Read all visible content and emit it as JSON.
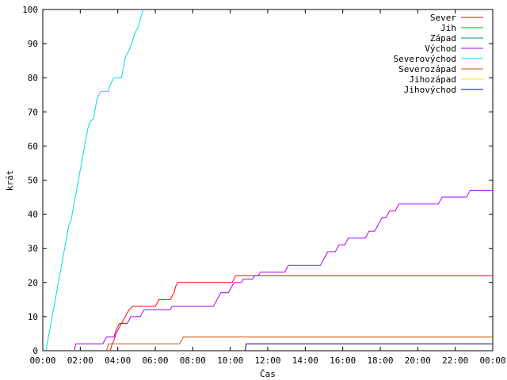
{
  "chart_data": {
    "type": "line",
    "ylabel": "krát",
    "xlabel": "Čas",
    "xlim": [
      0,
      24
    ],
    "ylim": [
      0,
      100
    ],
    "x_tick_labels": [
      "00:00",
      "02:00",
      "04:00",
      "06:00",
      "08:00",
      "10:00",
      "12:00",
      "14:00",
      "16:00",
      "18:00",
      "20:00",
      "22:00",
      "00:00"
    ],
    "y_ticks": [
      0,
      10,
      20,
      30,
      40,
      50,
      60,
      70,
      80,
      90,
      100
    ],
    "legend_position": "top-right",
    "grid": false,
    "series": [
      {
        "name": "Sever",
        "color": "#ff0000",
        "points": [
          [
            3.6,
            0
          ],
          [
            3.7,
            2
          ],
          [
            3.8,
            3
          ],
          [
            3.9,
            5
          ],
          [
            4.0,
            6
          ],
          [
            4.1,
            7
          ],
          [
            4.2,
            8
          ],
          [
            4.3,
            9
          ],
          [
            4.4,
            10
          ],
          [
            4.5,
            11
          ],
          [
            4.6,
            12
          ],
          [
            4.8,
            13
          ],
          [
            6.0,
            13
          ],
          [
            6.1,
            14
          ],
          [
            6.2,
            15
          ],
          [
            6.8,
            15
          ],
          [
            6.9,
            16
          ],
          [
            7.0,
            17
          ],
          [
            7.05,
            18
          ],
          [
            7.1,
            19
          ],
          [
            7.2,
            20
          ],
          [
            10.1,
            20
          ],
          [
            10.2,
            21
          ],
          [
            10.3,
            22
          ],
          [
            24,
            22
          ]
        ]
      },
      {
        "name": "Jih",
        "color": "#00aa00",
        "points": []
      },
      {
        "name": "Západ",
        "color": "#0088aa",
        "points": []
      },
      {
        "name": "Východ",
        "color": "#aa00ee",
        "points": [
          [
            1.7,
            0
          ],
          [
            1.75,
            2
          ],
          [
            3.2,
            2
          ],
          [
            3.3,
            3
          ],
          [
            3.4,
            4
          ],
          [
            3.8,
            4
          ],
          [
            3.9,
            6
          ],
          [
            4.0,
            7
          ],
          [
            4.1,
            8
          ],
          [
            4.5,
            8
          ],
          [
            4.6,
            9
          ],
          [
            4.7,
            10
          ],
          [
            5.2,
            10
          ],
          [
            5.3,
            11
          ],
          [
            5.4,
            12
          ],
          [
            6.8,
            12
          ],
          [
            6.9,
            13
          ],
          [
            9.1,
            13
          ],
          [
            9.2,
            14
          ],
          [
            9.3,
            15
          ],
          [
            9.4,
            16
          ],
          [
            9.5,
            17
          ],
          [
            9.9,
            17
          ],
          [
            10.0,
            18
          ],
          [
            10.1,
            19
          ],
          [
            10.2,
            20
          ],
          [
            10.6,
            20
          ],
          [
            10.7,
            21
          ],
          [
            11.2,
            21
          ],
          [
            11.3,
            22
          ],
          [
            11.5,
            22
          ],
          [
            11.6,
            23
          ],
          [
            12.9,
            23
          ],
          [
            13.0,
            24
          ],
          [
            13.1,
            25
          ],
          [
            14.8,
            25
          ],
          [
            14.9,
            26
          ],
          [
            15.0,
            27
          ],
          [
            15.1,
            28
          ],
          [
            15.2,
            29
          ],
          [
            15.6,
            29
          ],
          [
            15.7,
            30
          ],
          [
            15.8,
            31
          ],
          [
            16.1,
            31
          ],
          [
            16.2,
            32
          ],
          [
            16.3,
            33
          ],
          [
            17.2,
            33
          ],
          [
            17.3,
            34
          ],
          [
            17.4,
            35
          ],
          [
            17.7,
            35
          ],
          [
            17.8,
            36
          ],
          [
            17.9,
            37
          ],
          [
            18.0,
            38
          ],
          [
            18.1,
            39
          ],
          [
            18.3,
            39
          ],
          [
            18.4,
            40
          ],
          [
            18.5,
            41
          ],
          [
            18.8,
            41
          ],
          [
            18.9,
            42
          ],
          [
            19.0,
            43
          ],
          [
            21.1,
            43
          ],
          [
            21.2,
            44
          ],
          [
            21.3,
            45
          ],
          [
            22.6,
            45
          ],
          [
            22.7,
            46
          ],
          [
            22.8,
            47
          ],
          [
            24,
            47
          ]
        ]
      },
      {
        "name": "Severovýchod",
        "color": "#00dddd",
        "points": [
          [
            0.15,
            0
          ],
          [
            0.2,
            1
          ],
          [
            0.3,
            4
          ],
          [
            0.4,
            7
          ],
          [
            0.5,
            10
          ],
          [
            0.6,
            13
          ],
          [
            0.7,
            16
          ],
          [
            0.8,
            19
          ],
          [
            0.9,
            22
          ],
          [
            1.0,
            25
          ],
          [
            1.1,
            28
          ],
          [
            1.2,
            31
          ],
          [
            1.3,
            34
          ],
          [
            1.4,
            37
          ],
          [
            1.5,
            38
          ],
          [
            1.6,
            41
          ],
          [
            1.7,
            44
          ],
          [
            1.8,
            47
          ],
          [
            1.9,
            50
          ],
          [
            2.0,
            53
          ],
          [
            2.1,
            56
          ],
          [
            2.2,
            59
          ],
          [
            2.3,
            62
          ],
          [
            2.4,
            65
          ],
          [
            2.5,
            67
          ],
          [
            2.7,
            68
          ],
          [
            2.8,
            71
          ],
          [
            2.9,
            74
          ],
          [
            3.0,
            75
          ],
          [
            3.1,
            76
          ],
          [
            3.5,
            76
          ],
          [
            3.6,
            78
          ],
          [
            3.8,
            80
          ],
          [
            4.2,
            80
          ],
          [
            4.3,
            83
          ],
          [
            4.4,
            86
          ],
          [
            4.6,
            88
          ],
          [
            4.8,
            91
          ],
          [
            4.9,
            93
          ],
          [
            5.1,
            95
          ],
          [
            5.2,
            97
          ],
          [
            5.3,
            99
          ],
          [
            5.4,
            100
          ]
        ]
      },
      {
        "name": "Severozápad",
        "color": "#cc5500",
        "points": [
          [
            3.4,
            0
          ],
          [
            3.5,
            2
          ],
          [
            7.3,
            2
          ],
          [
            7.4,
            3
          ],
          [
            7.5,
            4
          ],
          [
            24,
            4
          ]
        ]
      },
      {
        "name": "Jihozápad",
        "color": "#eeee00",
        "points": []
      },
      {
        "name": "Jihovýchod",
        "color": "#0000aa",
        "points": [
          [
            10.8,
            0
          ],
          [
            10.85,
            2
          ],
          [
            24,
            2
          ]
        ]
      }
    ]
  }
}
